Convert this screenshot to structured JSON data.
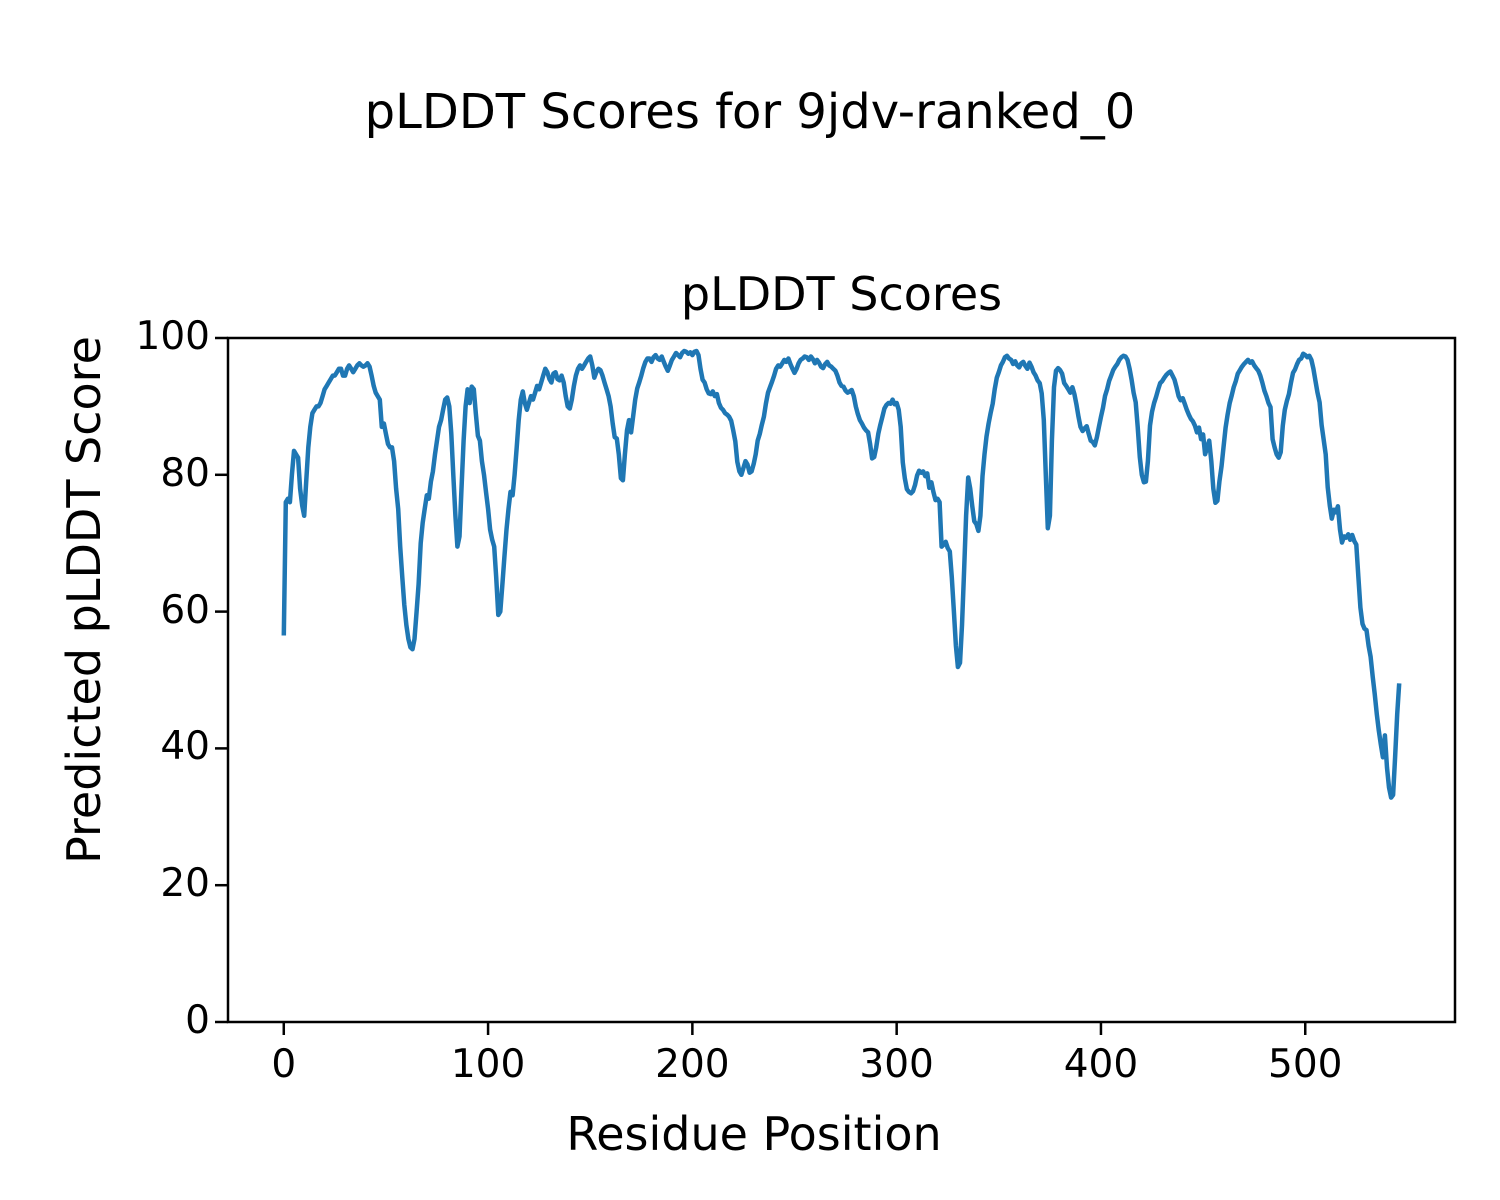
{
  "figure": {
    "title": "pLDDT Scores for 9jdv-ranked_0"
  },
  "chart_data": {
    "type": "line",
    "title": "pLDDT Scores",
    "xlabel": "Residue Position",
    "ylabel": "Predicted pLDDT Score",
    "xticks": [
      0,
      100,
      200,
      300,
      400,
      500
    ],
    "yticks": [
      0,
      20,
      40,
      60,
      80,
      100
    ],
    "xlim": [
      -27.3,
      573.3
    ],
    "ylim": [
      0,
      100
    ],
    "grid": false,
    "legend": "none",
    "line_color": "#1f77b4",
    "frame_color": "#000000",
    "x_start": 0,
    "x_step": 1,
    "series": [
      {
        "name": "pLDDT",
        "values": [
          56.5,
          76,
          76.5,
          76,
          80,
          83.5,
          83,
          82.5,
          78,
          75.5,
          74,
          79,
          84,
          87,
          89,
          89.5,
          90,
          90,
          90.5,
          91.5,
          92.5,
          93,
          93.5,
          94,
          94.5,
          94.5,
          95,
          95.5,
          95.5,
          94.5,
          94.5,
          95.5,
          96,
          95.5,
          95,
          95.5,
          96,
          96.3,
          96,
          95.8,
          96,
          96.3,
          95.8,
          94.5,
          93,
          92,
          91.5,
          91,
          87,
          87.5,
          86,
          84.5,
          84,
          84,
          82,
          78,
          75,
          69.5,
          65,
          61,
          58,
          56,
          54.8,
          54.5,
          56,
          60,
          64,
          70,
          73,
          75,
          77,
          76.5,
          79,
          80.5,
          83,
          85,
          87,
          88,
          89.5,
          91,
          91.3,
          90,
          86,
          80,
          74,
          69.5,
          71,
          78,
          85,
          90,
          92.5,
          90.5,
          92.9,
          92.5,
          89,
          85.7,
          85,
          82,
          80,
          77.5,
          75,
          72,
          70.5,
          69.5,
          65,
          59.5,
          60,
          64,
          68,
          72,
          75,
          77.5,
          77,
          80,
          84,
          88,
          91,
          92.2,
          90.5,
          89.5,
          90.5,
          91.5,
          91,
          92,
          93,
          92.5,
          93.5,
          94.5,
          95.5,
          95,
          94,
          93.5,
          94.8,
          95,
          94,
          93.8,
          94.5,
          93.5,
          91.5,
          90,
          89.7,
          91,
          93,
          94.5,
          95.5,
          96,
          95.5,
          96,
          96.5,
          97,
          97.3,
          96,
          94.2,
          95,
          95.5,
          95.3,
          94.5,
          93.5,
          92.5,
          91.5,
          90,
          87.5,
          85.5,
          85.3,
          83,
          79.5,
          79.2,
          83,
          86.5,
          88,
          86.2,
          88.5,
          91,
          92.6,
          93.5,
          94.5,
          95.6,
          96.5,
          97,
          97,
          96.5,
          97.2,
          97.5,
          97,
          96.8,
          97.3,
          96.5,
          95.8,
          95.2,
          96,
          96.8,
          97.3,
          97.8,
          97.5,
          97.2,
          97.8,
          98.1,
          98,
          97.7,
          97.9,
          97.5,
          98,
          98.1,
          97.5,
          95.5,
          93.9,
          93.5,
          92.5,
          91.9,
          91.8,
          92.2,
          91.5,
          91.8,
          90.5,
          89.8,
          89.5,
          89,
          88.8,
          88.5,
          87.9,
          86.5,
          84.9,
          81.9,
          80.5,
          80,
          81,
          82,
          81.5,
          80.3,
          80.5,
          81.6,
          83,
          85,
          86,
          87.3,
          88.5,
          90.4,
          92,
          92.8,
          93.6,
          94.5,
          95.5,
          96,
          95.8,
          96.3,
          96.8,
          96.5,
          97,
          96.2,
          95.5,
          94.9,
          95.5,
          96.3,
          96.8,
          97,
          97.3,
          97.2,
          96.8,
          97.3,
          96.9,
          96.3,
          96.8,
          96.4,
          95.8,
          95.6,
          96.2,
          96.5,
          96,
          95.8,
          95.5,
          95.2,
          94.5,
          93.5,
          93,
          92.9,
          92.3,
          92,
          92.2,
          92.4,
          91.5,
          90,
          88.9,
          88,
          87.5,
          86.9,
          86.5,
          86.2,
          84.5,
          82.4,
          82.6,
          84,
          86,
          87.3,
          88.5,
          89.7,
          90.2,
          90.5,
          90.4,
          91,
          90.3,
          90.5,
          89.5,
          87,
          81.8,
          79.5,
          77.9,
          77.5,
          77.3,
          77.6,
          78.5,
          79.9,
          80.6,
          80.3,
          80.5,
          79.8,
          80.2,
          78.1,
          78.9,
          77.5,
          76.3,
          76.5,
          76,
          69.5,
          69.8,
          70.2,
          69.3,
          68.8,
          65,
          60,
          55,
          51.9,
          52.5,
          58,
          66,
          74,
          79.6,
          78,
          75.5,
          73.2,
          72.8,
          71.8,
          74,
          79.8,
          83,
          85.6,
          87.5,
          89,
          90.4,
          92.5,
          94.2,
          95,
          96,
          96.5,
          97.2,
          97.4,
          97,
          96.8,
          96.2,
          96.6,
          96,
          95.7,
          96.3,
          96.5,
          95.9,
          95.5,
          96.4,
          95.8,
          95,
          94.5,
          93.8,
          93.4,
          91.9,
          88,
          80,
          72.2,
          74,
          85,
          92.8,
          95.2,
          95.6,
          95.3,
          94.8,
          93.4,
          93,
          92.5,
          92,
          92.8,
          91.8,
          90.3,
          88.5,
          87,
          86.4,
          86.8,
          87.1,
          86,
          85,
          84.8,
          84.3,
          85.5,
          87,
          88.5,
          89.8,
          91.5,
          92.5,
          93.7,
          94.5,
          95.3,
          95.8,
          96.2,
          96.8,
          97.2,
          97.4,
          97.3,
          96.8,
          95.5,
          93.9,
          92,
          90.6,
          87,
          82.6,
          80,
          78.9,
          79,
          82,
          87.2,
          89.2,
          90.5,
          91.4,
          92.5,
          93.4,
          93.7,
          94.2,
          94.6,
          94.9,
          95.1,
          94.5,
          93.9,
          92.8,
          91.5,
          90.9,
          91.2,
          90.4,
          89.5,
          88.8,
          88.2,
          87.8,
          87.2,
          86.2,
          86.9,
          85.2,
          85.9,
          83,
          84,
          85,
          82,
          78,
          75.9,
          76.2,
          79,
          81.2,
          84,
          86.9,
          88.8,
          90.5,
          91.6,
          92.8,
          93.7,
          94.8,
          95.3,
          95.8,
          96.2,
          96.5,
          96.8,
          96.4,
          96.6,
          96,
          95.6,
          95.2,
          94.5,
          93.5,
          92.3,
          91.5,
          90.5,
          89.9,
          85.2,
          84,
          83,
          82.5,
          83.3,
          87.2,
          89.5,
          90.8,
          91.8,
          93.5,
          94.9,
          95.4,
          96.2,
          96.8,
          97,
          97.7,
          97.5,
          97.2,
          97.4,
          96.8,
          95.5,
          93.7,
          92,
          90.6,
          87.3,
          85.2,
          83,
          78.2,
          75.5,
          73.6,
          74.9,
          74.5,
          75.4,
          72,
          70.1,
          71,
          70.8,
          71.3,
          70.5,
          71.2,
          70.3,
          69.8,
          65,
          60.6,
          58.2,
          57.5,
          57.3,
          55,
          53.4,
          50.5,
          48,
          45,
          42.6,
          40.6,
          38.7,
          41.9,
          37.2,
          34.3,
          32.8,
          33.2,
          38.7,
          45,
          49.5
        ]
      }
    ]
  }
}
